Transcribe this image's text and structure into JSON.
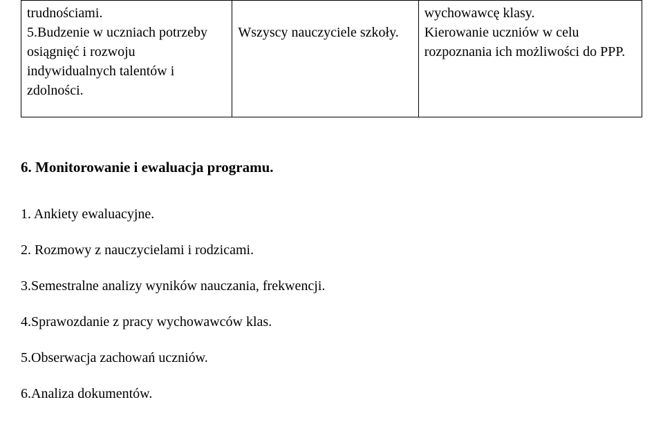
{
  "table": {
    "row": {
      "col1_line1": "trudnościami.",
      "col1_line2": "5.Budzenie w uczniach potrzeby osiągnięć i rozwoju indywidualnych talentów i zdolności.",
      "col2": "Wszyscy nauczyciele szkoły.",
      "col3_line1": "wychowawcę klasy.",
      "col3_line2": "Kierowanie uczniów w celu rozpoznania ich możliwości do PPP."
    },
    "col_widths": [
      "34%",
      "30%",
      "36%"
    ],
    "border_color": "#000000",
    "font_size": 20
  },
  "section": {
    "heading": "6. Monitorowanie i ewaluacja programu.",
    "heading_fontsize": 21,
    "heading_fontweight": "bold",
    "items": [
      "1. Ankiety ewaluacyjne.",
      "2. Rozmowy z nauczycielami i rodzicami.",
      "3.Semestralne analizy wyników nauczania, frekwencji.",
      "4.Sprawozdanie z pracy wychowawców klas.",
      "5.Obserwacja zachowań uczniów.",
      "6.Analiza dokumentów."
    ],
    "item_fontsize": 20
  },
  "page": {
    "background_color": "#ffffff",
    "text_color": "#000000",
    "font_family": "Times New Roman"
  }
}
